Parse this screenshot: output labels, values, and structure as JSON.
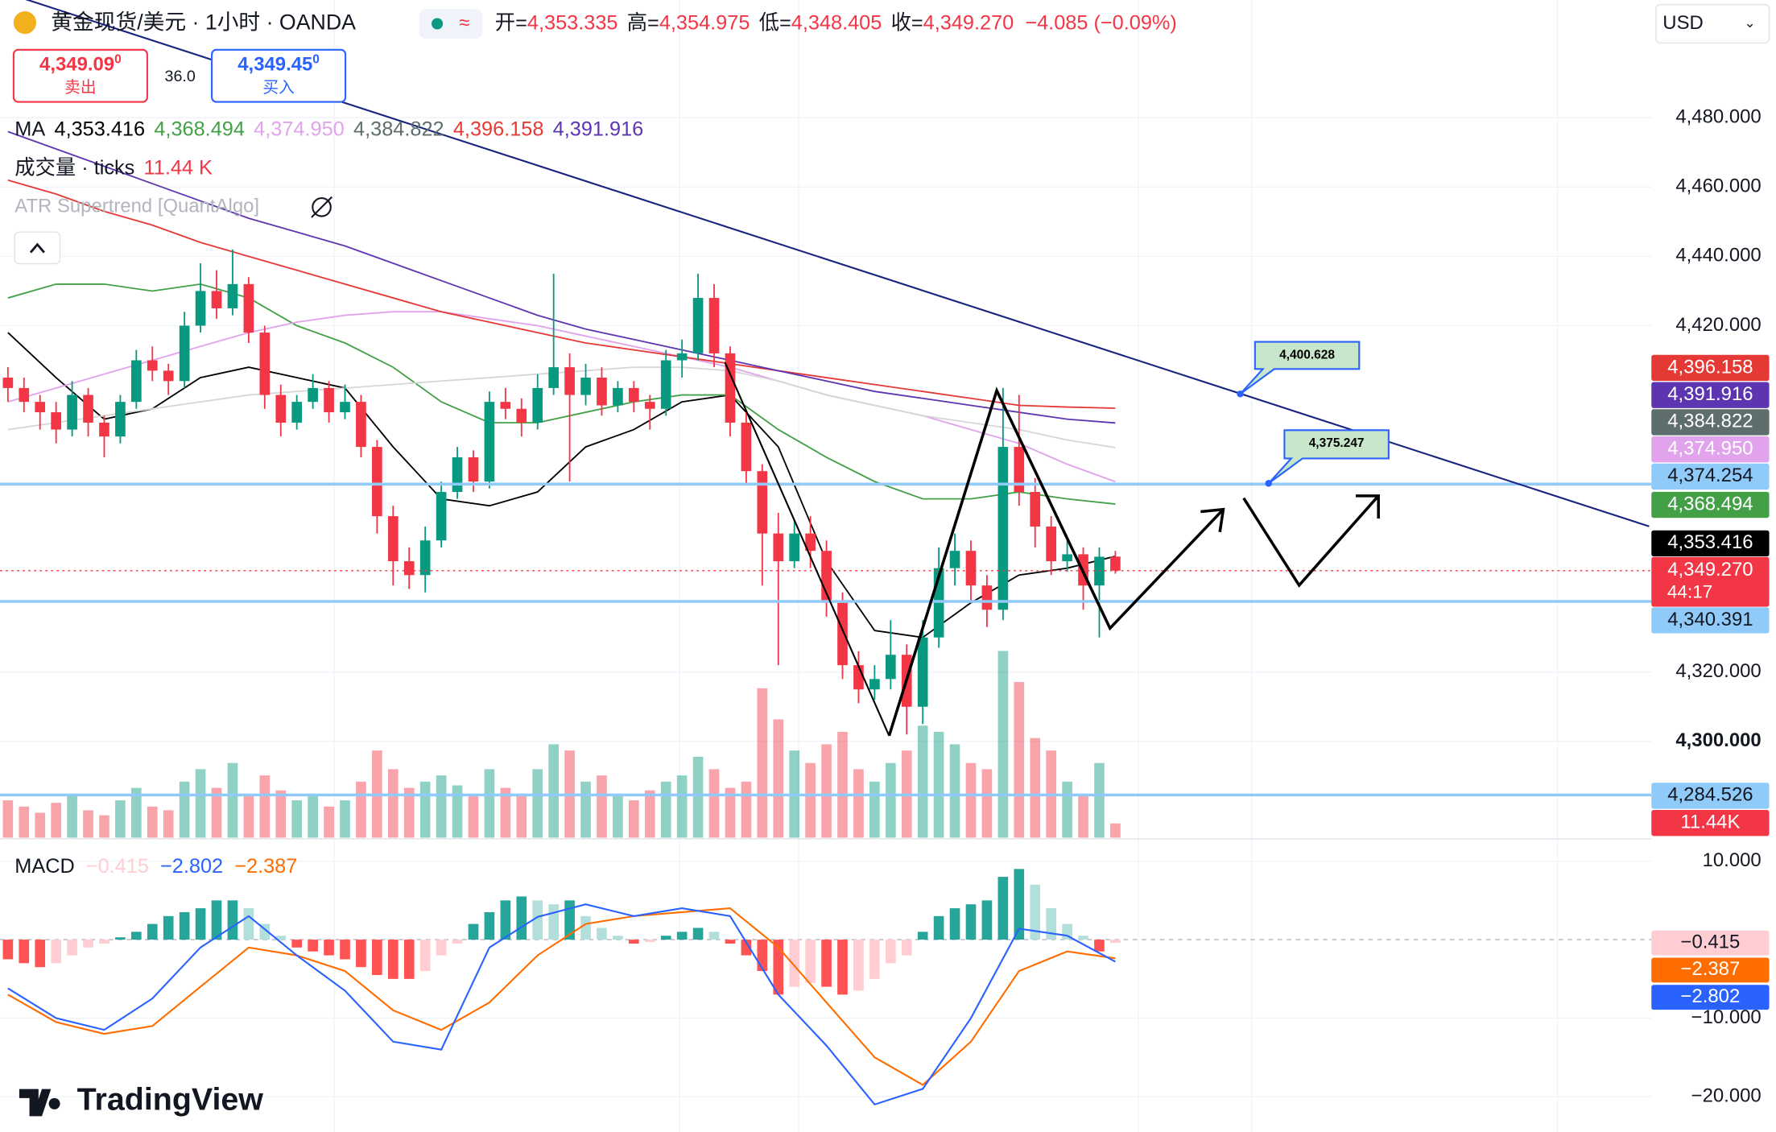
{
  "header": {
    "symbol": "黄金现货/美元 · 1小时 · OANDA",
    "open_label": "开=",
    "open": "4,353.335",
    "high_label": "高=",
    "high": "4,354.975",
    "low_label": "低=",
    "low": "4,348.405",
    "close_label": "收=",
    "close": "4,349.270",
    "change": "−4.085 (−0.09%)",
    "currency": "USD",
    "sell_price": "4,349.09",
    "sell_sup": "0",
    "sell_label": "卖出",
    "spread": "36.0",
    "buy_price": "4,349.45",
    "buy_sup": "0",
    "buy_label": "买入",
    "volume_label": "成交量 · ticks",
    "volume_value": "11.44 K",
    "atr_label": "ATR Supertrend [QuantAlgo]",
    "countdown": "44:17",
    "logo": "TradingView"
  },
  "chart_data": {
    "type": "candlestick",
    "ylim": [
      4272.2,
      4514
    ],
    "yticks": [
      {
        "value": 4480,
        "label": "4,480.000"
      },
      {
        "value": 4460,
        "label": "4,460.000"
      },
      {
        "value": 4440,
        "label": "4,440.000"
      },
      {
        "value": 4420,
        "label": "4,420.000"
      },
      {
        "value": 4320,
        "label": "4,320.000"
      },
      {
        "value": 4300,
        "label": "4,300.000"
      }
    ],
    "up_color": "#089981",
    "down_color": "#f23645",
    "ohlc": [
      [
        4405,
        4408,
        4398,
        4402
      ],
      [
        4402,
        4405,
        4395,
        4398
      ],
      [
        4398,
        4400,
        4390,
        4395
      ],
      [
        4395,
        4398,
        4386,
        4390
      ],
      [
        4390,
        4404,
        4388,
        4400
      ],
      [
        4400,
        4402,
        4388,
        4392
      ],
      [
        4392,
        4394,
        4382,
        4388
      ],
      [
        4388,
        4400,
        4386,
        4398
      ],
      [
        4398,
        4413,
        4396,
        4410
      ],
      [
        4410,
        4414,
        4404,
        4407
      ],
      [
        4407,
        4409,
        4400,
        4404
      ],
      [
        4404,
        4424,
        4402,
        4420
      ],
      [
        4420,
        4438,
        4418,
        4430
      ],
      [
        4430,
        4436,
        4422,
        4425
      ],
      [
        4425,
        4442,
        4423,
        4432
      ],
      [
        4432,
        4434,
        4415,
        4418
      ],
      [
        4418,
        4420,
        4396,
        4400
      ],
      [
        4400,
        4403,
        4388,
        4392
      ],
      [
        4392,
        4400,
        4390,
        4398
      ],
      [
        4398,
        4406,
        4396,
        4402
      ],
      [
        4402,
        4404,
        4392,
        4395
      ],
      [
        4395,
        4403,
        4393,
        4398
      ],
      [
        4398,
        4400,
        4382,
        4385
      ],
      [
        4385,
        4387,
        4360,
        4365
      ],
      [
        4365,
        4368,
        4345,
        4352
      ],
      [
        4352,
        4356,
        4344,
        4348
      ],
      [
        4348,
        4362,
        4343,
        4358
      ],
      [
        4358,
        4375,
        4356,
        4372
      ],
      [
        4372,
        4385,
        4370,
        4382
      ],
      [
        4382,
        4384,
        4372,
        4375
      ],
      [
        4375,
        4401,
        4373,
        4398
      ],
      [
        4398,
        4402,
        4393,
        4396
      ],
      [
        4396,
        4399,
        4388,
        4392
      ],
      [
        4392,
        4406,
        4390,
        4402
      ],
      [
        4402,
        4435,
        4400,
        4408
      ],
      [
        4408,
        4412,
        4375,
        4400
      ],
      [
        4400,
        4409,
        4397,
        4405
      ],
      [
        4405,
        4408,
        4394,
        4397
      ],
      [
        4397,
        4404,
        4395,
        4402
      ],
      [
        4402,
        4404,
        4395,
        4398
      ],
      [
        4398,
        4400,
        4390,
        4396
      ],
      [
        4396,
        4413,
        4394,
        4410
      ],
      [
        4410,
        4416,
        4405,
        4412
      ],
      [
        4412,
        4435,
        4410,
        4428
      ],
      [
        4428,
        4432,
        4408,
        4412
      ],
      [
        4412,
        4414,
        4388,
        4392
      ],
      [
        4392,
        4395,
        4374,
        4378
      ],
      [
        4378,
        4380,
        4345,
        4360
      ],
      [
        4360,
        4366,
        4322,
        4352
      ],
      [
        4352,
        4364,
        4350,
        4360
      ],
      [
        4360,
        4365,
        4350,
        4355
      ],
      [
        4355,
        4358,
        4336,
        4340
      ],
      [
        4340,
        4343,
        4318,
        4322
      ],
      [
        4322,
        4326,
        4311,
        4315
      ],
      [
        4315,
        4322,
        4312,
        4318
      ],
      [
        4318,
        4335,
        4315,
        4325
      ],
      [
        4325,
        4328,
        4302,
        4310
      ],
      [
        4310,
        4335,
        4305,
        4330
      ],
      [
        4330,
        4356,
        4327,
        4350
      ],
      [
        4350,
        4360,
        4345,
        4355
      ],
      [
        4355,
        4358,
        4340,
        4345
      ],
      [
        4345,
        4348,
        4333,
        4338
      ],
      [
        4338,
        4402,
        4335,
        4385
      ],
      [
        4385,
        4400,
        4368,
        4372
      ],
      [
        4372,
        4376,
        4356,
        4362
      ],
      [
        4362,
        4365,
        4348,
        4352
      ],
      [
        4352,
        4358,
        4349,
        4354
      ],
      [
        4354,
        4356,
        4338,
        4345
      ],
      [
        4345,
        4356,
        4330,
        4353.3
      ],
      [
        4353.335,
        4354.975,
        4348.405,
        4349.27
      ]
    ],
    "volume": [
      30,
      25,
      20,
      28,
      35,
      22,
      18,
      30,
      40,
      25,
      22,
      45,
      55,
      40,
      60,
      35,
      50,
      38,
      30,
      35,
      25,
      30,
      45,
      70,
      55,
      40,
      45,
      50,
      42,
      35,
      55,
      40,
      35,
      55,
      75,
      70,
      45,
      50,
      35,
      30,
      38,
      45,
      50,
      65,
      55,
      40,
      45,
      120,
      95,
      70,
      60,
      75,
      85,
      55,
      45,
      60,
      70,
      90,
      85,
      75,
      60,
      55,
      150,
      125,
      80,
      70,
      45,
      35,
      60,
      11.44
    ],
    "volume_label": "11.44K",
    "ma": {
      "label": "MA",
      "x": [
        0,
        3,
        6,
        9,
        12,
        15,
        18,
        21,
        24,
        27,
        30,
        33,
        36,
        39,
        42,
        45,
        48,
        51,
        54,
        57,
        60,
        63,
        66,
        69
      ],
      "series": [
        {
          "color": "#000000",
          "value_label": "4,353.416",
          "values": [
            4418,
            4405,
            4393,
            4396,
            4405,
            4408,
            4405,
            4402,
            4385,
            4370,
            4368,
            4372,
            4385,
            4390,
            4398,
            4400,
            4385,
            4352,
            4332,
            4330,
            4340,
            4348,
            4350,
            4353.416
          ]
        },
        {
          "color": "#43a047",
          "value_label": "4,368.494",
          "values": [
            4428,
            4432,
            4432,
            4430,
            4432,
            4428,
            4420,
            4415,
            4408,
            4398,
            4392,
            4392,
            4395,
            4398,
            4400,
            4400,
            4390,
            4382,
            4375,
            4370,
            4370,
            4372,
            4370,
            4368.494
          ]
        },
        {
          "color": "#e1a3ec",
          "value_label": "4,374.950",
          "values": [
            4398,
            4402,
            4406,
            4410,
            4414,
            4418,
            4421,
            4423,
            4424,
            4424,
            4422,
            4420,
            4417,
            4414,
            4411,
            4408,
            4404,
            4400,
            4397,
            4394,
            4390,
            4386,
            4380,
            4374.95
          ]
        },
        {
          "color": "#5d6e6d",
          "line_color": "#d6d6d6",
          "value_label": "4,384.822",
          "values": [
            4390,
            4392,
            4394,
            4396,
            4398,
            4400,
            4401,
            4402,
            4403,
            4404,
            4405,
            4406,
            4407,
            4408,
            4408,
            4407,
            4404,
            4400,
            4397,
            4394,
            4392,
            4390,
            4387,
            4384.822
          ]
        },
        {
          "color": "#e53935",
          "value_label": "4,396.158",
          "values": [
            4462,
            4458,
            4453,
            4449,
            4444,
            4440,
            4436,
            4432,
            4428,
            4424,
            4421,
            4418,
            4415,
            4413,
            4411,
            4409,
            4407,
            4405,
            4403,
            4401,
            4399,
            4397,
            4396.5,
            4396.158
          ]
        },
        {
          "color": "#5e35b1",
          "value_label": "4,391.916",
          "values": [
            4476,
            4471,
            4466,
            4461,
            4456,
            4451,
            4447,
            4443,
            4438,
            4433,
            4428,
            4423,
            4419,
            4416,
            4413,
            4410,
            4407,
            4404,
            4401,
            4399,
            4397,
            4395,
            4393,
            4391.916
          ]
        }
      ]
    },
    "hlines": [
      {
        "value": 4374.254,
        "label": "4,374.254"
      },
      {
        "value": 4340.391,
        "label": "4,340.391"
      },
      {
        "value": 4284.526,
        "label": "4,284.526"
      }
    ],
    "last_price": {
      "value": 4349.27,
      "label": "4,349.270"
    },
    "drawings": [
      "4,400.628",
      "4,375.247"
    ],
    "macd": {
      "label": "MACD",
      "ylim": [
        -24.5,
        12.7
      ],
      "yticks": [
        {
          "value": 10,
          "label": "10.000"
        },
        {
          "value": -10,
          "label": "−10.000"
        },
        {
          "value": -20,
          "label": "−20.000"
        }
      ],
      "histogram": [
        -2.5,
        -3,
        -3.5,
        -3,
        -2,
        -1,
        -0.5,
        0.3,
        1,
        2,
        3,
        3.5,
        4,
        5,
        5,
        4,
        2,
        0.5,
        -1,
        -1.5,
        -2,
        -2.5,
        -3.5,
        -4.5,
        -5,
        -5,
        -4,
        -2,
        -0.5,
        2,
        3.5,
        5,
        5.5,
        5,
        4.5,
        5,
        3,
        1.5,
        0.5,
        -0.5,
        -0.3,
        0.5,
        1,
        1.5,
        1,
        -0.5,
        -2,
        -4,
        -7,
        -6,
        -5.5,
        -6,
        -7,
        -6.5,
        -5,
        -3,
        -2,
        1,
        3,
        4,
        4.5,
        5,
        8,
        9,
        7,
        4,
        2,
        0.5,
        -1.5,
        -0.415
      ],
      "histogram_label": "−0.415",
      "x": [
        0,
        3,
        6,
        9,
        12,
        15,
        18,
        21,
        24,
        27,
        30,
        33,
        36,
        39,
        42,
        45,
        48,
        51,
        54,
        57,
        60,
        63,
        66,
        69
      ],
      "macd": {
        "color": "#2962ff",
        "value_label": "−2.802",
        "values": [
          -6.2,
          -10,
          -11.5,
          -7.5,
          -1,
          3,
          -2,
          -6.5,
          -13,
          -14,
          -1,
          2.9,
          4.5,
          3,
          4,
          3,
          -7,
          -13.5,
          -21,
          -19,
          -10,
          1.4,
          0.5,
          -2.802
        ]
      },
      "signal": {
        "color": "#ff6d00",
        "value_label": "−2.387",
        "values": [
          -7,
          -10.5,
          -12,
          -11,
          -6,
          -1,
          -2,
          -4,
          -9,
          -11.5,
          -8,
          -2,
          2,
          3,
          3.5,
          4,
          -1,
          -8,
          -15,
          -18.5,
          -13,
          -4,
          -1.5,
          -2.387
        ]
      }
    }
  }
}
